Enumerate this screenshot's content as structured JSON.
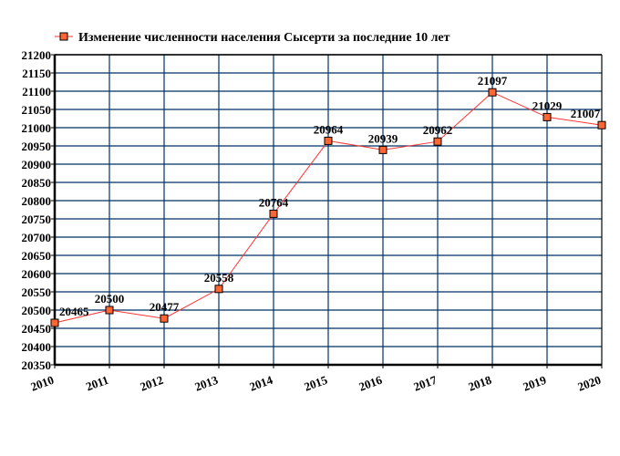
{
  "chart_data": {
    "type": "line",
    "title": "",
    "legend": {
      "label": "Изменение численности населения Сысерти за последние 10 лет",
      "placement": "top"
    },
    "x": [
      "2010",
      "2011",
      "2012",
      "2013",
      "2014",
      "2015",
      "2016",
      "2017",
      "2018",
      "2019",
      "2020"
    ],
    "series": [
      {
        "name": "Изменение численности населения Сысерти за последние 10 лет",
        "values": [
          20465,
          20500,
          20477,
          20558,
          20764,
          20964,
          20939,
          20962,
          21097,
          21029,
          21007
        ],
        "line_color": "#ff3333",
        "marker_color": "#ff6633"
      }
    ],
    "ylim": [
      20350,
      21200
    ],
    "ystep": 50,
    "grid": true,
    "grid_color": "#003366",
    "xlabel": "",
    "ylabel": ""
  }
}
